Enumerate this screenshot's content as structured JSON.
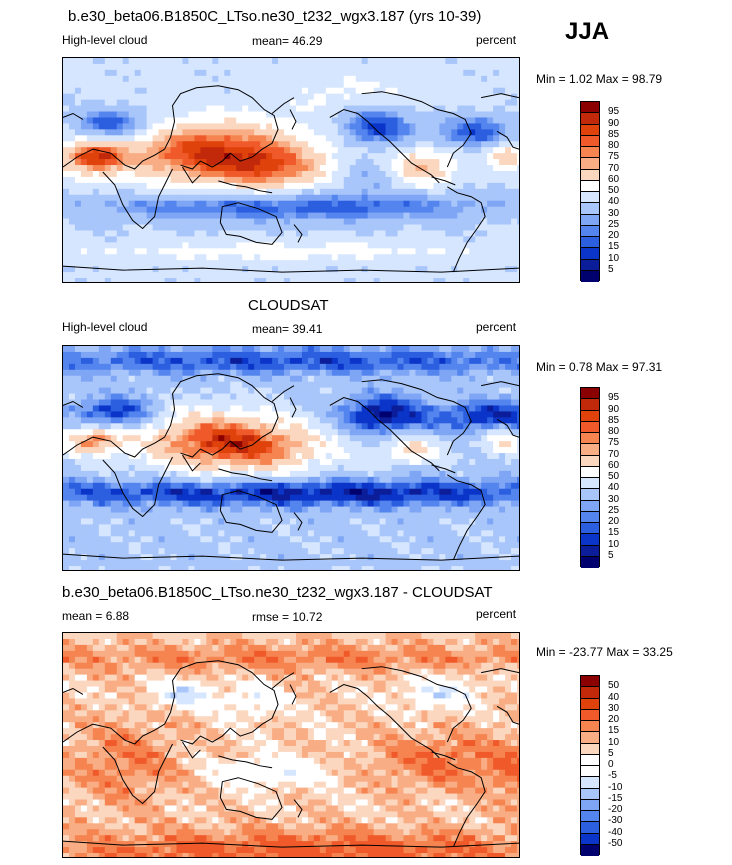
{
  "season": "JJA",
  "colors": {
    "ocean": "#ffffff",
    "coast": "#000000"
  },
  "chart_data": [
    {
      "type": "heatmap",
      "title": "b.e30_beta06.B1850C_LTso.ne30_t232_wgx3.187 (yrs 10-39)",
      "left_label": "High-level cloud",
      "stat_label": "mean=  46.29",
      "units": "percent",
      "minmax": "Min =   1.02 Max =  98.79",
      "mean": 46.29,
      "min": 1.02,
      "max": 98.79,
      "levels": [
        "95",
        "90",
        "85",
        "80",
        "75",
        "70",
        "60",
        "50",
        "40",
        "30",
        "25",
        "20",
        "15",
        "10",
        "5"
      ],
      "colors": [
        "#8b0000",
        "#c2290a",
        "#e0420c",
        "#f05a2a",
        "#f58450",
        "#f9ad84",
        "#fcd7c0",
        "#ffffff",
        "#d6e6ff",
        "#a9c6fb",
        "#7fa6f5",
        "#5485ee",
        "#2c5fe0",
        "#0a35c8",
        "#0b1d99",
        "#00006e"
      ]
    },
    {
      "type": "heatmap",
      "title": "CLOUDSAT",
      "left_label": "High-level cloud",
      "stat_label": "mean=  39.41",
      "units": "percent",
      "minmax": "Min =   0.78 Max =  97.31",
      "mean": 39.41,
      "min": 0.78,
      "max": 97.31,
      "levels": [
        "95",
        "90",
        "85",
        "80",
        "75",
        "70",
        "60",
        "50",
        "40",
        "30",
        "25",
        "20",
        "15",
        "10",
        "5"
      ],
      "colors": [
        "#8b0000",
        "#c2290a",
        "#e0420c",
        "#f05a2a",
        "#f58450",
        "#f9ad84",
        "#fcd7c0",
        "#ffffff",
        "#d6e6ff",
        "#a9c6fb",
        "#7fa6f5",
        "#5485ee",
        "#2c5fe0",
        "#0a35c8",
        "#0b1d99",
        "#00006e"
      ]
    },
    {
      "type": "heatmap",
      "title": "b.e30_beta06.B1850C_LTso.ne30_t232_wgx3.187 - CLOUDSAT",
      "left_label": "mean =   6.88",
      "stat_label": "rmse =  10.72",
      "units": "percent",
      "minmax": "Min = -23.77 Max =  33.25",
      "mean": 6.88,
      "rmse": 10.72,
      "min": -23.77,
      "max": 33.25,
      "levels": [
        "50",
        "40",
        "30",
        "20",
        "15",
        "10",
        "5",
        "0",
        "-5",
        "-10",
        "-15",
        "-20",
        "-30",
        "-40",
        "-50"
      ],
      "colors": [
        "#8b0000",
        "#c2290a",
        "#e0420c",
        "#f05a2a",
        "#f58450",
        "#f9ad84",
        "#fcd7c0",
        "#ffffff",
        "#ffffff",
        "#d6e6ff",
        "#a9c6fb",
        "#7fa6f5",
        "#5485ee",
        "#2c5fe0",
        "#0a35c8",
        "#00006e"
      ]
    }
  ]
}
